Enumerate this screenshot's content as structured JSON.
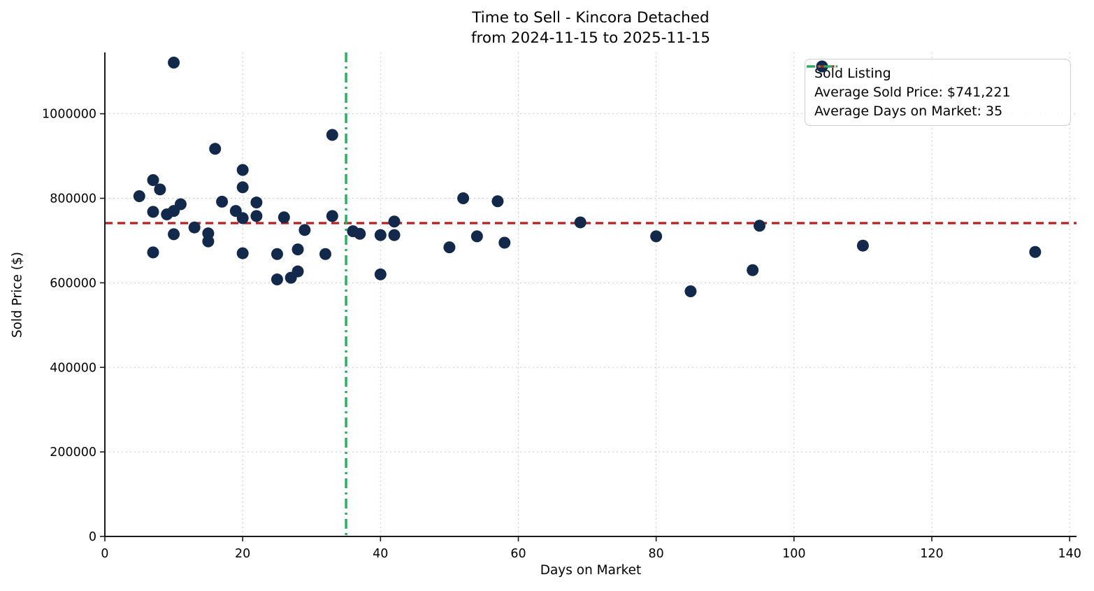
{
  "chart_data": {
    "type": "scatter",
    "title": "Time to Sell - Kincora Detached",
    "subtitle": "from 2024-11-15 to 2025-11-15",
    "xlabel": "Days on Market",
    "ylabel": "Sold Price ($)",
    "xlim": [
      0,
      141
    ],
    "ylim": [
      0,
      1145000
    ],
    "grid": true,
    "legend_position": "top-right",
    "x_ticks": [
      {
        "value": 0,
        "label": "0"
      },
      {
        "value": 20,
        "label": "20"
      },
      {
        "value": 40,
        "label": "40"
      },
      {
        "value": 60,
        "label": "60"
      },
      {
        "value": 80,
        "label": "80"
      },
      {
        "value": 100,
        "label": "100"
      },
      {
        "value": 120,
        "label": "120"
      },
      {
        "value": 140,
        "label": "140"
      }
    ],
    "y_ticks": [
      {
        "value": 0,
        "label": "0"
      },
      {
        "value": 200000,
        "label": "200000"
      },
      {
        "value": 400000,
        "label": "400000"
      },
      {
        "value": 600000,
        "label": "600000"
      },
      {
        "value": 800000,
        "label": "800000"
      },
      {
        "value": 1000000,
        "label": "1000000"
      }
    ],
    "points": [
      [
        5,
        805000
      ],
      [
        7,
        843000
      ],
      [
        7,
        768000
      ],
      [
        7,
        672000
      ],
      [
        8,
        821000
      ],
      [
        9,
        762000
      ],
      [
        10,
        1121000
      ],
      [
        10,
        770000
      ],
      [
        10,
        715000
      ],
      [
        11,
        786000
      ],
      [
        13,
        731000
      ],
      [
        15,
        717000
      ],
      [
        15,
        698000
      ],
      [
        16,
        917000
      ],
      [
        17,
        792000
      ],
      [
        19,
        770000
      ],
      [
        20,
        867000
      ],
      [
        20,
        826000
      ],
      [
        20,
        753000
      ],
      [
        20,
        670000
      ],
      [
        22,
        790000
      ],
      [
        22,
        758000
      ],
      [
        25,
        668000
      ],
      [
        25,
        608000
      ],
      [
        26,
        755000
      ],
      [
        27,
        612000
      ],
      [
        28,
        679000
      ],
      [
        28,
        627000
      ],
      [
        29,
        725000
      ],
      [
        32,
        668000
      ],
      [
        33,
        950000
      ],
      [
        33,
        758000
      ],
      [
        36,
        722000
      ],
      [
        37,
        716000
      ],
      [
        40,
        713000
      ],
      [
        40,
        620000
      ],
      [
        42,
        745000
      ],
      [
        42,
        713000
      ],
      [
        50,
        684000
      ],
      [
        52,
        800000
      ],
      [
        54,
        710000
      ],
      [
        57,
        793000
      ],
      [
        58,
        695000
      ],
      [
        69,
        743000
      ],
      [
        80,
        710000
      ],
      [
        85,
        580000
      ],
      [
        94,
        630000
      ],
      [
        95,
        735000
      ],
      [
        110,
        688000
      ],
      [
        135,
        673000
      ]
    ],
    "avg_sold_price": {
      "value": 741221,
      "display": "$741,221"
    },
    "avg_days_on_market": {
      "value": 35,
      "display": "35"
    },
    "legend": [
      {
        "marker": "circle",
        "label": "Sold Listing"
      },
      {
        "marker": "dashed-line",
        "label": "Average Sold Price: $741,221"
      },
      {
        "marker": "dashdot-line",
        "label": "Average Days on Market: 35"
      }
    ],
    "colors": {
      "point": "#13294b",
      "avg_price_line": "#b22222",
      "avg_days_line": "#27ae60",
      "grid": "#cccccc",
      "axis": "#1a1a1a",
      "text": "#000000"
    }
  }
}
